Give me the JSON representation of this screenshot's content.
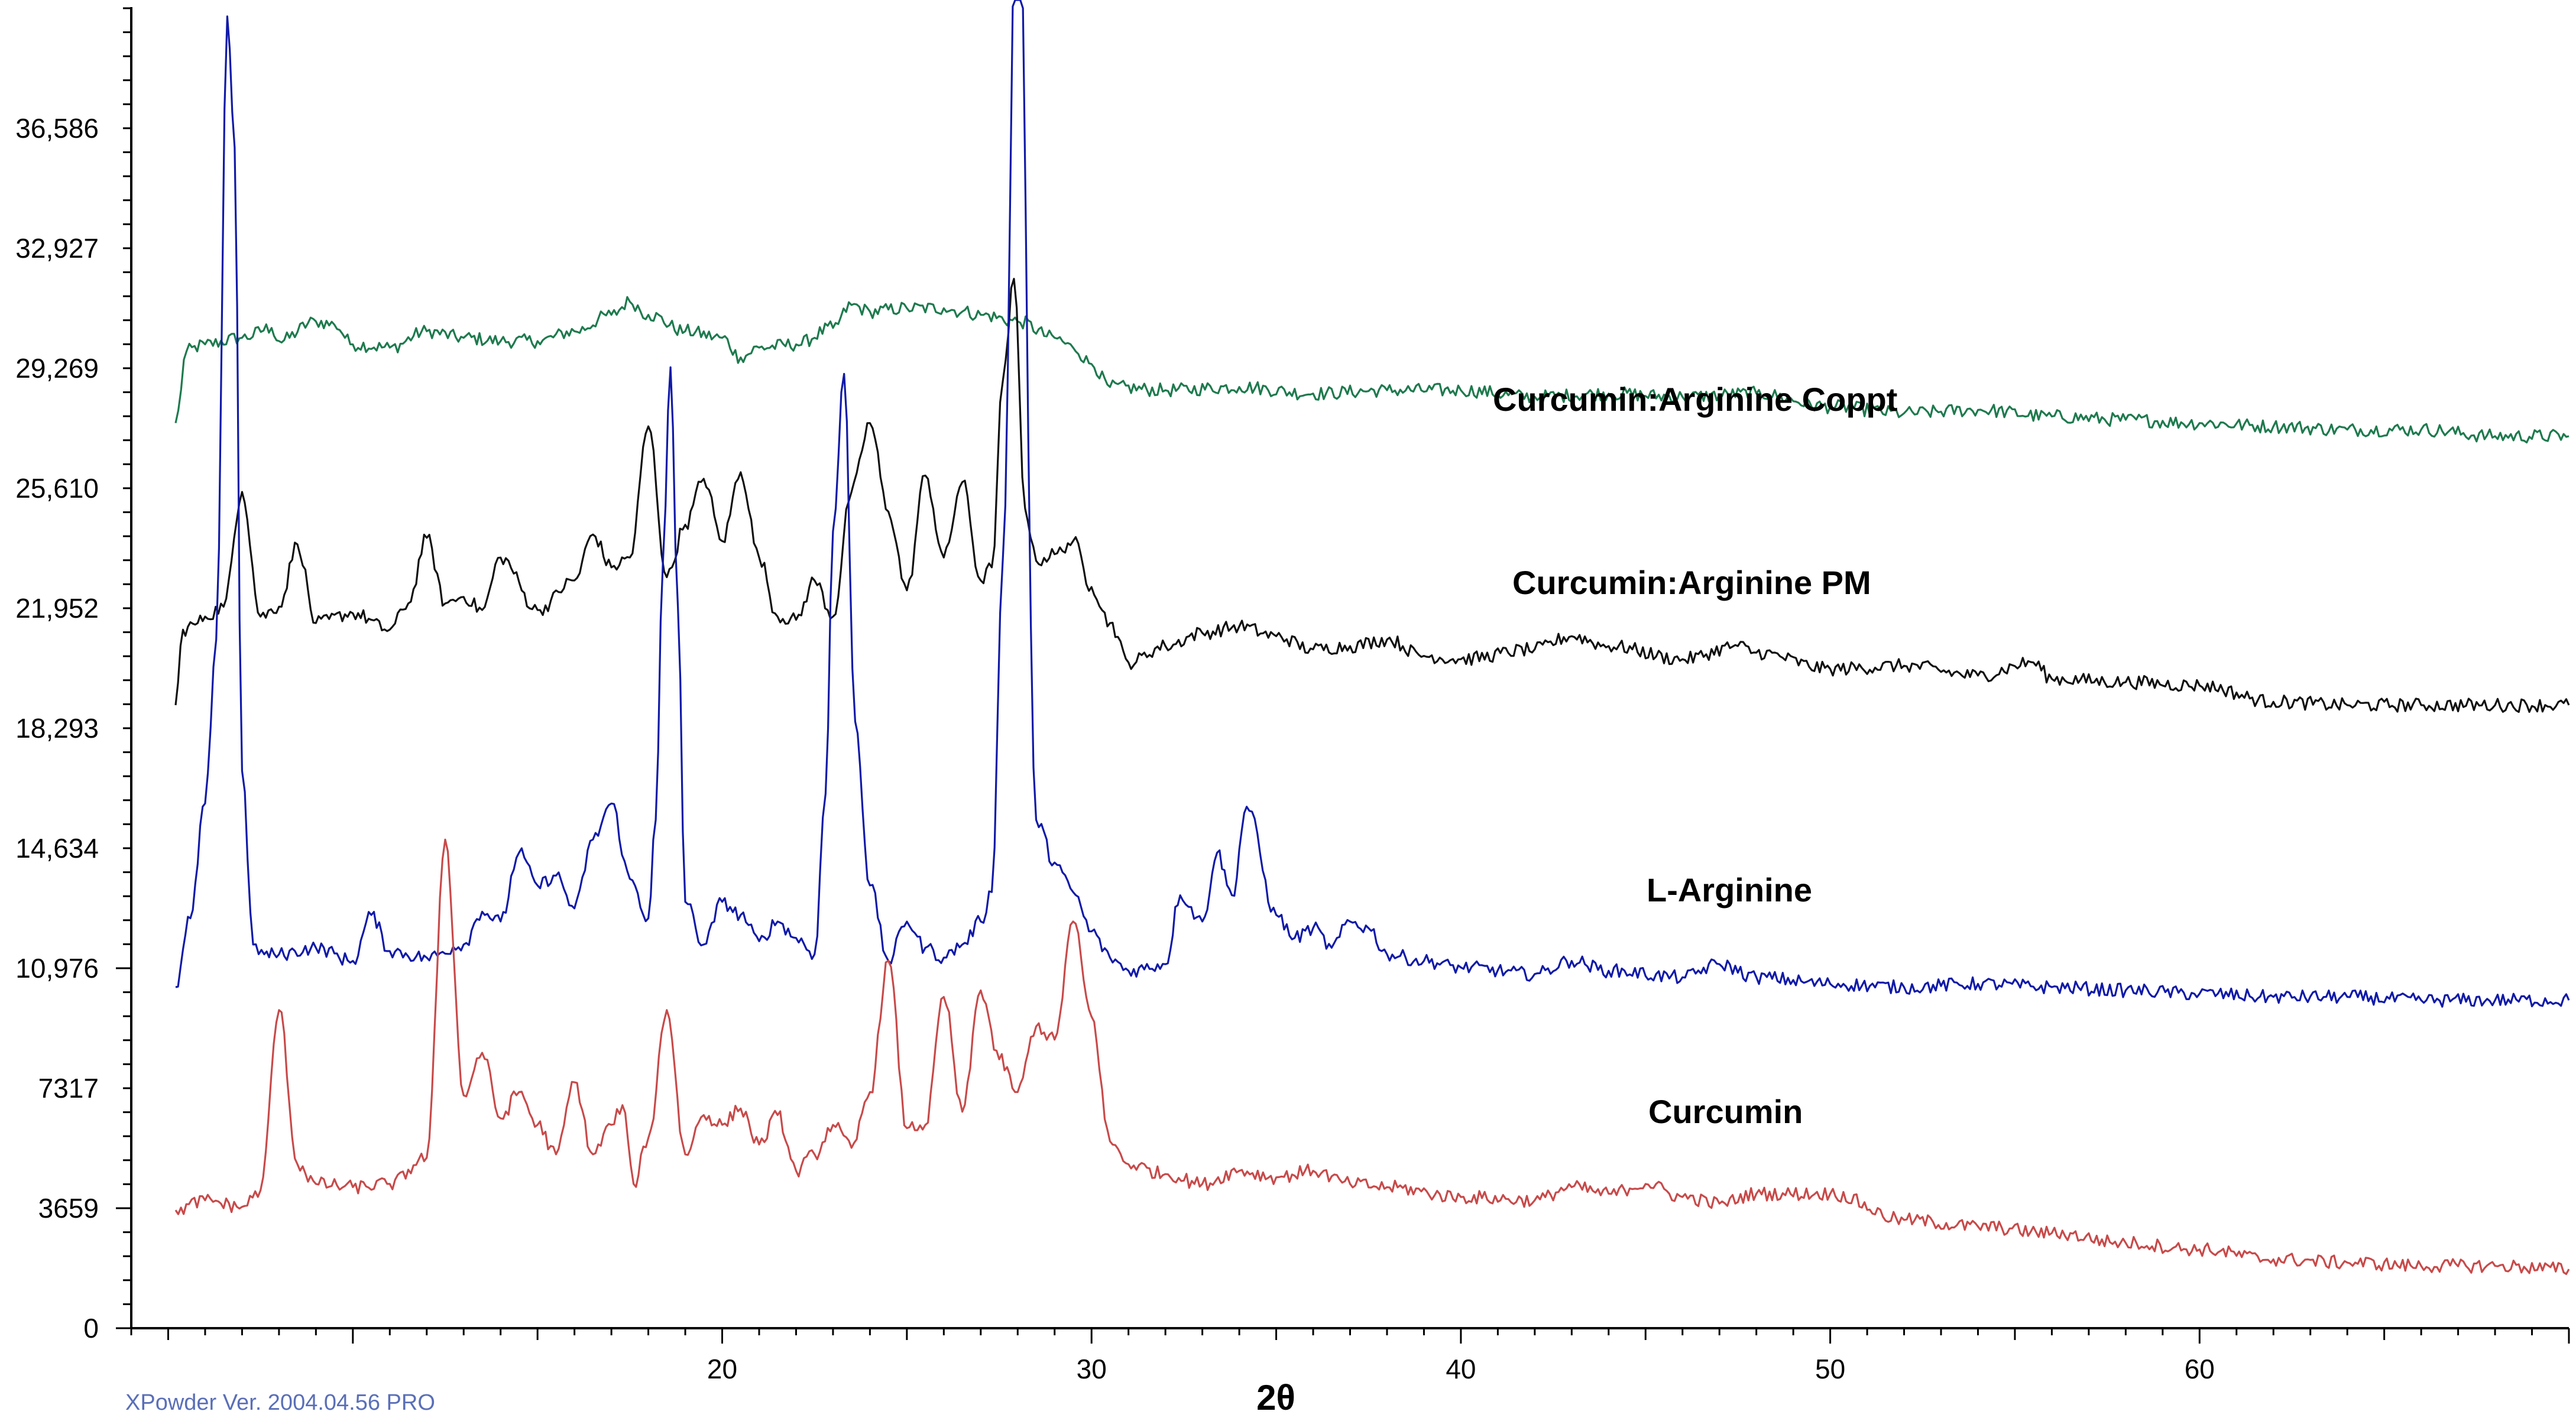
{
  "footer_text": "XPowder Ver. 2004.04.56 PRO",
  "chart_data": {
    "type": "line",
    "xlabel": "2θ",
    "ylabel": "",
    "title": "",
    "xlim": [
      4,
      70
    ],
    "ylim": [
      0,
      40500
    ],
    "x_ticks": [
      20,
      30,
      40,
      50,
      60
    ],
    "x_tick_labels": [
      "20",
      "30",
      "40",
      "50",
      "60"
    ],
    "y_ticks": [
      0,
      3659,
      7317,
      10976,
      14634,
      18293,
      21952,
      25610,
      29269,
      32927,
      36586
    ],
    "y_tick_labels": [
      "0",
      "3659",
      "7317",
      "10,976",
      "14,634",
      "18,293",
      "21,952",
      "25,610",
      "29,269",
      "32,927",
      "36,586"
    ],
    "series": [
      {
        "name": "Curcumin:Arginine Coppt",
        "color": "#1e7a4e",
        "x": [
          5.2,
          5.5,
          6,
          7,
          7.8,
          8,
          9,
          9.5,
          10,
          11,
          12,
          13,
          14,
          15,
          16,
          17,
          17.5,
          18,
          19,
          20,
          20.5,
          21,
          22,
          23,
          23.5,
          24,
          25,
          26,
          26.5,
          27,
          28,
          29,
          29.5,
          30,
          30.5,
          32,
          34,
          36,
          38,
          40,
          42,
          44,
          46,
          48,
          50,
          52,
          54,
          56,
          58,
          60,
          62,
          64,
          66,
          68,
          70
        ],
        "y": [
          27600,
          29800,
          30000,
          30200,
          30500,
          30100,
          30700,
          30600,
          30000,
          29900,
          30400,
          30200,
          30100,
          30100,
          30400,
          30900,
          31300,
          30900,
          30400,
          30200,
          29600,
          29900,
          30000,
          30500,
          31200,
          31000,
          31100,
          31100,
          31000,
          30900,
          30700,
          30200,
          29900,
          29400,
          28700,
          28600,
          28700,
          28500,
          28600,
          28600,
          28400,
          28500,
          28400,
          28500,
          28100,
          27900,
          28000,
          27800,
          27700,
          27600,
          27500,
          27400,
          27400,
          27200,
          27200
        ]
      },
      {
        "name": "Curcumin:Arginine PM",
        "color": "#111111",
        "x": [
          5.2,
          5.4,
          5.8,
          6,
          6.5,
          7,
          7.5,
          8,
          8.5,
          9,
          10,
          11,
          11.5,
          12,
          12.5,
          13,
          13.5,
          14,
          15,
          16,
          16.5,
          17,
          17.5,
          18,
          18.5,
          19,
          19.5,
          20,
          20.5,
          21,
          21.5,
          22,
          22.5,
          23,
          23.5,
          24,
          24.5,
          25,
          25.5,
          26,
          26.5,
          27,
          27.3,
          27.6,
          27.9,
          28.2,
          28.5,
          29,
          29.5,
          30,
          30.5,
          31,
          32,
          33,
          34,
          35,
          36,
          37,
          38,
          39,
          40,
          42,
          43,
          44,
          46,
          47.5,
          48,
          50,
          52,
          54,
          55.5,
          56,
          58,
          60,
          62,
          64,
          66,
          68,
          70
        ],
        "y": [
          19000,
          21300,
          21500,
          21700,
          22000,
          25500,
          21700,
          22000,
          23900,
          21500,
          21800,
          21300,
          22100,
          24100,
          22100,
          22300,
          21900,
          23500,
          21900,
          22800,
          24200,
          23200,
          23500,
          27500,
          22900,
          24500,
          25900,
          24000,
          26100,
          23500,
          21700,
          21600,
          22800,
          21700,
          25500,
          27600,
          24900,
          22500,
          26000,
          23500,
          25800,
          22800,
          23200,
          28900,
          32000,
          25000,
          23400,
          23600,
          24000,
          22600,
          21500,
          20300,
          20800,
          21200,
          21400,
          21100,
          20700,
          20800,
          21000,
          20500,
          20400,
          20700,
          21100,
          20800,
          20400,
          20800,
          20600,
          20100,
          20200,
          19900,
          20300,
          19800,
          19700,
          19600,
          19100,
          19000,
          19000,
          19000,
          19000
        ]
      },
      {
        "name": "L-Arginine",
        "color": "#101aa8",
        "x": [
          5.2,
          5.6,
          6,
          6.3,
          6.6,
          6.8,
          7,
          7.3,
          7.6,
          8,
          9,
          10,
          10.5,
          11,
          12,
          13,
          13.5,
          14,
          14.5,
          15,
          15.5,
          16,
          16.5,
          17,
          17.5,
          18,
          18.2,
          18.4,
          18.6,
          18.8,
          19,
          19.5,
          20,
          20.5,
          21,
          21.5,
          22,
          22.5,
          22.8,
          23,
          23.3,
          23.6,
          24,
          24.5,
          25,
          25.5,
          26,
          26.5,
          27,
          27.3,
          27.6,
          28,
          28.5,
          29,
          29.5,
          30,
          30.5,
          31,
          32,
          32.4,
          33,
          33.4,
          33.8,
          34.2,
          35,
          35.5,
          36,
          36.5,
          37,
          37.5,
          38,
          39,
          40,
          42,
          43,
          44,
          46,
          47,
          48,
          50,
          52,
          54,
          56,
          58,
          60,
          62,
          64,
          66,
          68,
          70
        ],
        "y": [
          10400,
          12500,
          16000,
          21000,
          40000,
          36000,
          17000,
          11700,
          11400,
          11400,
          11600,
          11200,
          12600,
          11500,
          11300,
          11700,
          12700,
          12400,
          14500,
          13500,
          13800,
          12800,
          14900,
          16000,
          13700,
          12500,
          15500,
          23500,
          29300,
          22000,
          13000,
          11700,
          13000,
          12600,
          11800,
          12400,
          11900,
          11400,
          16300,
          24300,
          29100,
          18500,
          13500,
          11200,
          12400,
          11600,
          11300,
          11700,
          12400,
          13300,
          23500,
          46000,
          15500,
          14200,
          13300,
          12100,
          11300,
          10900,
          11100,
          13200,
          12400,
          14500,
          13200,
          15900,
          12600,
          11900,
          12200,
          11600,
          12400,
          12200,
          11400,
          11200,
          11000,
          10800,
          11200,
          10900,
          10700,
          11100,
          10700,
          10500,
          10400,
          10500,
          10400,
          10300,
          10200,
          10100,
          10100,
          10000,
          10000,
          10000
        ]
      },
      {
        "name": "Curcumin",
        "color": "#c84a4a",
        "x": [
          5.2,
          6,
          7,
          7.5,
          8,
          8.5,
          9,
          10,
          11,
          12,
          12.5,
          13,
          13.5,
          14,
          14.5,
          15,
          15.5,
          16,
          16.5,
          17,
          17.3,
          17.6,
          18,
          18.5,
          19,
          19.5,
          20,
          20.5,
          21,
          21.5,
          22,
          22.5,
          23,
          23.5,
          24,
          24.5,
          25,
          25.5,
          26,
          26.5,
          27,
          27.5,
          28,
          28.5,
          29,
          29.5,
          30,
          30.5,
          31,
          32,
          33,
          34,
          35,
          36,
          37,
          38,
          40,
          42,
          43,
          44,
          45,
          46,
          47,
          48,
          50,
          52,
          54,
          56,
          58,
          60,
          62,
          64,
          66,
          68,
          70
        ],
        "y": [
          3600,
          3900,
          3700,
          4200,
          9700,
          5000,
          4400,
          4300,
          4400,
          5200,
          14900,
          7100,
          8400,
          6400,
          7200,
          6200,
          5300,
          7500,
          5300,
          6200,
          6800,
          4400,
          5800,
          9700,
          5300,
          6500,
          6200,
          6700,
          5600,
          6500,
          4800,
          5300,
          6200,
          5500,
          7200,
          11200,
          6100,
          6200,
          10100,
          6600,
          10300,
          8200,
          7200,
          9200,
          8800,
          12400,
          9500,
          5700,
          5000,
          4700,
          4400,
          4800,
          4600,
          4800,
          4400,
          4300,
          4000,
          3900,
          4300,
          4100,
          4400,
          4000,
          3800,
          4100,
          4100,
          3300,
          3100,
          2900,
          2600,
          2400,
          2100,
          2000,
          1900,
          1900,
          1800
        ]
      }
    ],
    "annotations": [
      "Curcumin:Arginine Coppt",
      "Curcumin:Arginine PM",
      "L-Arginine",
      "Curcumin"
    ],
    "grid": false,
    "legend": "none"
  }
}
